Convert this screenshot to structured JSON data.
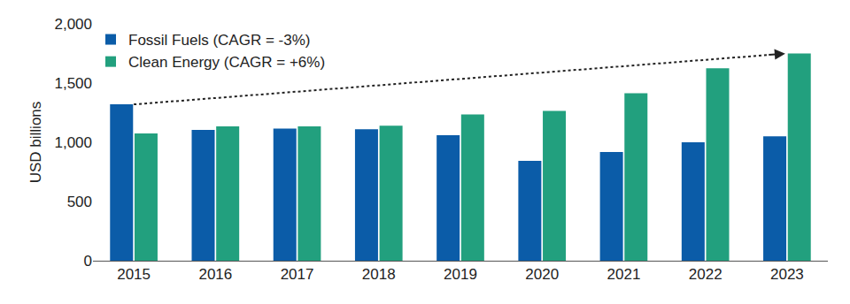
{
  "chart_data": {
    "type": "bar",
    "y_label": "USD billions",
    "categories": [
      "2015",
      "2016",
      "2017",
      "2018",
      "2019",
      "2020",
      "2021",
      "2022",
      "2023"
    ],
    "series": [
      {
        "name": "Fossil Fuels (CAGR = -3%)",
        "color": "#0b5ca8",
        "values": [
          1320,
          1105,
          1115,
          1110,
          1060,
          843,
          918,
          1000,
          1050
        ]
      },
      {
        "name": "Clean Energy (CAGR = +6%)",
        "color": "#22a07e",
        "values": [
          1075,
          1135,
          1135,
          1140,
          1235,
          1265,
          1415,
          1625,
          1750
        ]
      }
    ],
    "ylim": [
      0,
      2000
    ],
    "yticks": [
      0,
      500,
      {
        "value": 1000,
        "label": "1,000"
      },
      {
        "value": 1500,
        "label": "1,500"
      },
      {
        "value": 2000,
        "label": "2,000"
      }
    ],
    "grid": false,
    "legend": "top left"
  }
}
